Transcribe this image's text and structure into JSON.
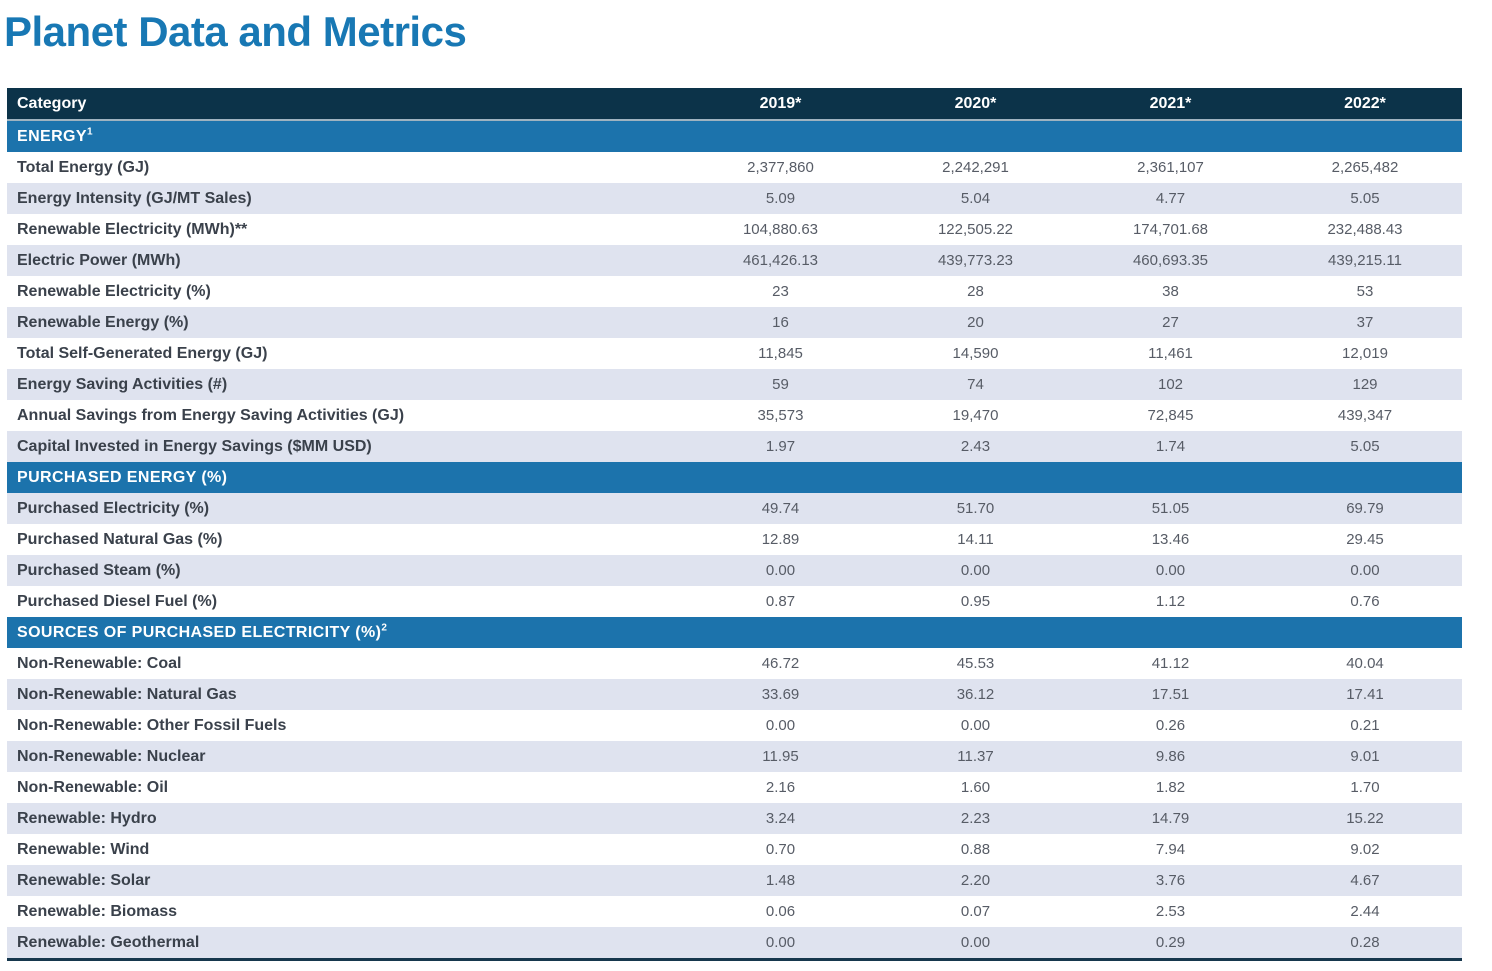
{
  "page_title": "Planet Data and Metrics",
  "colors": {
    "title_blue": "#1878B4",
    "header_navy": "#0C3349",
    "section_band_blue": "#1C73AC",
    "shaded_row": "#DFE3EF",
    "label_text": "#3A414B",
    "value_text": "#575C66"
  },
  "table": {
    "columns": [
      "Category",
      "2019*",
      "2020*",
      "2021*",
      "2022*"
    ],
    "sections": [
      {
        "title": "ENERGY",
        "sup": "1",
        "rows": [
          {
            "label": "Total Energy (GJ)",
            "values": [
              "2,377,860",
              "2,242,291",
              "2,361,107",
              "2,265,482"
            ]
          },
          {
            "label": "Energy Intensity (GJ/MT Sales)",
            "values": [
              "5.09",
              "5.04",
              "4.77",
              "5.05"
            ]
          },
          {
            "label": "Renewable Electricity (MWh)**",
            "values": [
              "104,880.63",
              "122,505.22",
              "174,701.68",
              "232,488.43"
            ]
          },
          {
            "label": "Electric Power (MWh)",
            "values": [
              "461,426.13",
              "439,773.23",
              "460,693.35",
              "439,215.11"
            ]
          },
          {
            "label": "Renewable Electricity (%)",
            "values": [
              "23",
              "28",
              "38",
              "53"
            ]
          },
          {
            "label": "Renewable Energy (%)",
            "values": [
              "16",
              "20",
              "27",
              "37"
            ]
          },
          {
            "label": "Total Self-Generated Energy (GJ)",
            "values": [
              "11,845",
              "14,590",
              "11,461",
              "12,019"
            ]
          },
          {
            "label": "Energy Saving Activities (#)",
            "values": [
              "59",
              "74",
              "102",
              "129"
            ]
          },
          {
            "label": "Annual Savings from Energy Saving Activities (GJ)",
            "values": [
              "35,573",
              "19,470",
              "72,845",
              "439,347"
            ]
          },
          {
            "label": "Capital Invested in Energy Savings ($MM USD)",
            "values": [
              "1.97",
              "2.43",
              "1.74",
              "5.05"
            ]
          }
        ]
      },
      {
        "title": "PURCHASED ENERGY (%)",
        "sup": "",
        "rows": [
          {
            "label": "Purchased Electricity (%)",
            "values": [
              "49.74",
              "51.70",
              "51.05",
              "69.79"
            ]
          },
          {
            "label": "Purchased Natural Gas (%)",
            "values": [
              "12.89",
              "14.11",
              "13.46",
              "29.45"
            ]
          },
          {
            "label": "Purchased Steam (%)",
            "values": [
              "0.00",
              "0.00",
              "0.00",
              "0.00"
            ]
          },
          {
            "label": "Purchased Diesel Fuel (%)",
            "values": [
              "0.87",
              "0.95",
              "1.12",
              "0.76"
            ]
          }
        ]
      },
      {
        "title": "SOURCES OF PURCHASED ELECTRICITY (%)",
        "sup": "2",
        "rows": [
          {
            "label": "Non-Renewable: Coal",
            "values": [
              "46.72",
              "45.53",
              "41.12",
              "40.04"
            ]
          },
          {
            "label": "Non-Renewable: Natural Gas",
            "values": [
              "33.69",
              "36.12",
              "17.51",
              "17.41"
            ]
          },
          {
            "label": "Non-Renewable: Other Fossil Fuels",
            "values": [
              "0.00",
              "0.00",
              "0.26",
              "0.21"
            ]
          },
          {
            "label": "Non-Renewable: Nuclear",
            "values": [
              "11.95",
              "11.37",
              "9.86",
              "9.01"
            ]
          },
          {
            "label": "Non-Renewable: Oil",
            "values": [
              "2.16",
              "1.60",
              "1.82",
              "1.70"
            ]
          },
          {
            "label": "Renewable: Hydro",
            "values": [
              "3.24",
              "2.23",
              "14.79",
              "15.22"
            ]
          },
          {
            "label": "Renewable: Wind",
            "values": [
              "0.70",
              "0.88",
              "7.94",
              "9.02"
            ]
          },
          {
            "label": "Renewable: Solar",
            "values": [
              "1.48",
              "2.20",
              "3.76",
              "4.67"
            ]
          },
          {
            "label": "Renewable: Biomass",
            "values": [
              "0.06",
              "0.07",
              "2.53",
              "2.44"
            ]
          },
          {
            "label": "Renewable: Geothermal",
            "values": [
              "0.00",
              "0.00",
              "0.29",
              "0.28"
            ]
          }
        ]
      }
    ]
  }
}
